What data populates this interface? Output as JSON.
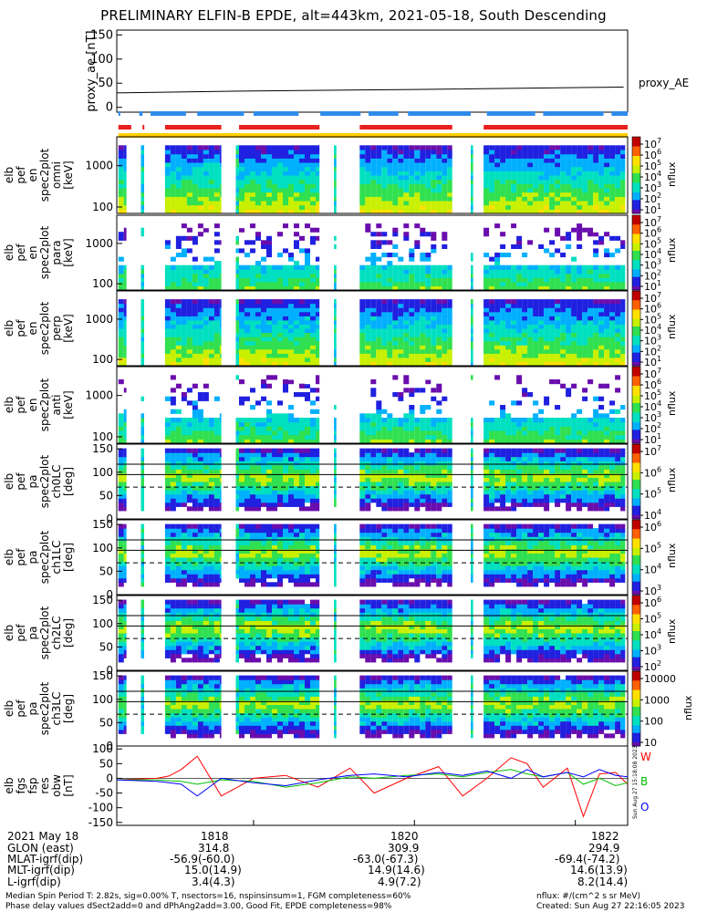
{
  "title": "PRELIMINARY ELFIN-B EPDE, alt=443km, 2021-05-18, South Descending",
  "colors": {
    "trace_red": "#ff0000",
    "trace_green": "#00c000",
    "trace_blue": "#0000ff",
    "bar_red": "#e8211e",
    "bar_blue": "#2f8bea",
    "bar_yellow": "#ffd000",
    "spectrogram_colormap": [
      "#ffffff",
      "#6a0dad",
      "#2020e0",
      "#00b0ff",
      "#00e0c0",
      "#30e050",
      "#c8f000",
      "#ffe000",
      "#ff6000",
      "#c00000"
    ]
  },
  "trailing_labels": {
    "proxy_ae": "proxy_AE",
    "nflux": "nflux",
    "w": "W",
    "b": "B",
    "o": "O"
  },
  "side_stamp": "Sun Aug 27 15:18:08 2023",
  "ephemeris": {
    "rows": [
      {
        "label": "2021 May 18",
        "values": [
          "1818",
          "1820",
          "1822"
        ]
      },
      {
        "label": "GLON (east)",
        "values": [
          "314.8",
          "309.9",
          "294.9"
        ]
      },
      {
        "label": "MLAT-igrf(dip)",
        "values": [
          "-56.9(-60.0)",
          "-63.0(-67.3)",
          "-69.4(-74.2)"
        ]
      },
      {
        "label": "MLT-igrf(dip)",
        "values": [
          "15.0(14.9)",
          "14.9(14.6)",
          "14.6(13.9)"
        ]
      },
      {
        "label": "L-igrf(dip)",
        "values": [
          "3.4(4.3)",
          "4.9(7.2)",
          "8.2(14.4)"
        ]
      }
    ]
  },
  "footer": {
    "line1": "Median Spin Period T: 2.82s, sig=0.00% T, nsectors=16, nspinsinsum=1, FGM completeness=60%",
    "line2": "Phase delay values dSect2add=0 and dPhAng2add=3.00, Good Fit, EPDE completeness=98%",
    "units": "nflux: #/(cm^2 s sr MeV)",
    "created": "Created: Sun Aug 27 22:16:05 2023"
  },
  "chart_data": [
    {
      "type": "line",
      "panel": "proxy_ae",
      "ylabel": "proxy_ae [nT]",
      "ylim": [
        -10,
        160
      ],
      "yticks": [
        "0",
        "50",
        "100",
        "150"
      ],
      "x_minutes": [
        1816.3,
        1818,
        1820,
        1822.6
      ],
      "series": [
        {
          "name": "proxy_AE",
          "values": [
            30,
            34,
            37,
            42
          ]
        }
      ]
    },
    {
      "type": "bar",
      "panel": "quality_bars",
      "series": [
        {
          "name": "blue_segments",
          "x_ranges": [
            [
              1816.32,
              1816.34
            ],
            [
              1816.58,
              1816.62
            ],
            [
              1816.72,
              1817.16
            ],
            [
              1817.3,
              1817.88
            ],
            [
              1818.0,
              1818.56
            ],
            [
              1818.83,
              1819.33
            ],
            [
              1819.43,
              1819.8
            ],
            [
              1819.92,
              1820.7
            ],
            [
              1820.9,
              1821.5
            ],
            [
              1821.6,
              1822.35
            ],
            [
              1822.45,
              1822.65
            ]
          ]
        },
        {
          "name": "red_segments",
          "x_ranges": [
            [
              1816.32,
              1816.48
            ],
            [
              1816.62,
              1816.64
            ],
            [
              1816.9,
              1817.6
            ],
            [
              1817.82,
              1818.82
            ],
            [
              1819.32,
              1820.47
            ],
            [
              1820.86,
              1822.65
            ]
          ]
        },
        {
          "name": "yellow_band",
          "x_ranges": [
            [
              1816.32,
              1822.65
            ]
          ]
        }
      ]
    },
    {
      "type": "heatmap",
      "panel": "elb_pef_en_spec2plot_omni",
      "ylabel": "elb pef en spec2plot omni [keV]",
      "yscale": "log",
      "yticks": [
        "100",
        "1000"
      ],
      "zlabel": "nflux",
      "zrange_exp": [
        1,
        7
      ],
      "colorbar_ticks": [
        "10^7",
        "10^6",
        "10^5",
        "10^4",
        "10^3",
        "10^2",
        "10^1"
      ],
      "mode": "high",
      "sparse": false
    },
    {
      "type": "heatmap",
      "panel": "elb_pef_en_spec2plot_para",
      "ylabel": "elb pef en spec2plot para [keV]",
      "yscale": "log",
      "yticks": [
        "100",
        "1000"
      ],
      "zlabel": "nflux",
      "zrange_exp": [
        1,
        7
      ],
      "colorbar_ticks": [
        "10^7",
        "10^6",
        "10^5",
        "10^4",
        "10^3",
        "10^2",
        "10^1"
      ],
      "mode": "low",
      "sparse": true
    },
    {
      "type": "heatmap",
      "panel": "elb_pef_en_spec2plot_perp",
      "ylabel": "elb pef en spec2plot perp [keV]",
      "yscale": "log",
      "yticks": [
        "100",
        "1000"
      ],
      "zlabel": "nflux",
      "zrange_exp": [
        1,
        7
      ],
      "colorbar_ticks": [
        "10^7",
        "10^6",
        "10^5",
        "10^4",
        "10^3",
        "10^2",
        "10^1"
      ],
      "mode": "high",
      "sparse": false
    },
    {
      "type": "heatmap",
      "panel": "elb_pef_en_spec2plot_anti",
      "ylabel": "elb pef en spec2plot anti [keV]",
      "yscale": "log",
      "yticks": [
        "100",
        "1000"
      ],
      "zlabel": "nflux",
      "zrange_exp": [
        1,
        7
      ],
      "colorbar_ticks": [
        "10^7",
        "10^6",
        "10^5",
        "10^4",
        "10^3",
        "10^2",
        "10^1"
      ],
      "mode": "low",
      "sparse": true
    },
    {
      "type": "heatmap",
      "panel": "elb_pef_pa_spec2plot_ch0LC",
      "ylabel": "elb pef pa spec2plot ch0LC [deg]",
      "ylim": [
        0,
        160
      ],
      "yticks": [
        "0",
        "50",
        "100",
        "150"
      ],
      "zlabel": "nflux",
      "colorbar_ticks": [
        "10^7",
        "10^6",
        "10^5",
        "10^4"
      ],
      "reference_lines_deg": {
        "solid": [
          117,
          95
        ],
        "dashed": [
          68
        ]
      },
      "mode": "pa"
    },
    {
      "type": "heatmap",
      "panel": "elb_pef_pa_spec2plot_ch1LC",
      "ylabel": "elb pef pa spec2plot ch1LC [deg]",
      "ylim": [
        0,
        160
      ],
      "yticks": [
        "0",
        "50",
        "100",
        "150"
      ],
      "zlabel": "nflux",
      "colorbar_ticks": [
        "10^6",
        "10^5",
        "10^4",
        "10^3"
      ],
      "reference_lines_deg": {
        "solid": [
          117,
          95
        ],
        "dashed": [
          68
        ]
      },
      "mode": "pa"
    },
    {
      "type": "heatmap",
      "panel": "elb_pef_pa_spec2plot_ch2LC",
      "ylabel": "elb pef pa spec2plot ch2LC [deg]",
      "ylim": [
        0,
        160
      ],
      "yticks": [
        "0",
        "50",
        "100",
        "150"
      ],
      "zlabel": "nflux",
      "colorbar_ticks": [
        "10^6",
        "10^5",
        "10^4",
        "10^3",
        "10^2"
      ],
      "reference_lines_deg": {
        "solid": [
          117,
          95
        ],
        "dashed": [
          68
        ]
      },
      "mode": "pa"
    },
    {
      "type": "heatmap",
      "panel": "elb_pef_pa_spec2plot_ch3LC",
      "ylabel": "elb pef pa spec2plot ch3LC [deg]",
      "ylim": [
        0,
        160
      ],
      "yticks": [
        "0",
        "50",
        "100",
        "150"
      ],
      "zlabel": "nflux",
      "colorbar_ticks": [
        "10000",
        "1000",
        "100",
        "10"
      ],
      "reference_lines_deg": {
        "solid": [
          117,
          95
        ],
        "dashed": [
          68
        ]
      },
      "mode": "pa"
    },
    {
      "type": "line",
      "panel": "elb_fgs_fsp_res_obw",
      "ylabel": "elb fgs fsp res obw [nT]",
      "ylim": [
        -160,
        110
      ],
      "yticks": [
        "-150",
        "-100",
        "-50",
        "0",
        "50",
        "100"
      ],
      "x_minutes": [
        1816.3,
        1816.8,
        1816.95,
        1817.1,
        1817.3,
        1817.6,
        1818.0,
        1818.4,
        1818.8,
        1819.2,
        1819.5,
        1819.9,
        1820.3,
        1820.6,
        1820.9,
        1821.2,
        1821.4,
        1821.6,
        1821.9,
        1822.1,
        1822.3,
        1822.5,
        1822.65
      ],
      "series": [
        {
          "name": "W",
          "values": [
            -5,
            0,
            8,
            30,
            75,
            -60,
            0,
            10,
            -30,
            35,
            -50,
            0,
            40,
            -60,
            0,
            70,
            50,
            -30,
            35,
            -130,
            15,
            20,
            -20
          ]
        },
        {
          "name": "B",
          "values": [
            -5,
            -5,
            -8,
            -10,
            -20,
            -5,
            -10,
            -30,
            -15,
            5,
            0,
            10,
            15,
            5,
            20,
            30,
            15,
            5,
            20,
            -20,
            0,
            -25,
            -15
          ]
        },
        {
          "name": "O",
          "values": [
            -5,
            -10,
            -15,
            -20,
            -60,
            0,
            -15,
            -25,
            -5,
            10,
            15,
            5,
            20,
            10,
            25,
            0,
            30,
            5,
            20,
            5,
            30,
            10,
            5
          ]
        }
      ]
    }
  ]
}
